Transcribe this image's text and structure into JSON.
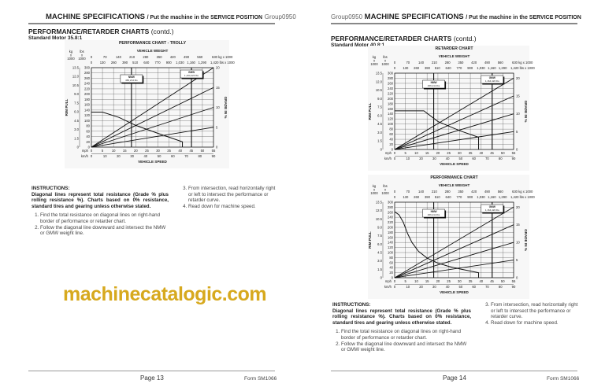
{
  "left_page": {
    "header": {
      "title": "MACHINE SPECIFICATIONS",
      "subtitle": "/ Put the machine in the SERVICE POSITION",
      "group": "Group0950"
    },
    "section_title": "PERFORMANCE/RETARDER CHARTS",
    "section_suffix": "(contd.)",
    "motor": "Standard Motor 35.8:1",
    "instructions": {
      "heading": "INSTRUCTIONS:",
      "body": "Diagonal lines represent total resistance (Grade % plus rolling resistance %). Charts based on 0% resistance, standard tires and gearing unless otherwise stated.",
      "steps": [
        "Find the total resistance on diagonal lines on right-hand border of performance or retarder chart.",
        "Follow the diagonal line downward and intersect the NMW or GMW weight line."
      ],
      "steps_cont": [
        "From intersection, read horizontally right or left to intersect the performance or retarder curve.",
        "Read down for machine speed."
      ]
    },
    "footer": {
      "page": "Page 13",
      "form": "Form SM1066"
    }
  },
  "right_page": {
    "header": {
      "title": "MACHINE SPECIFICATIONS",
      "subtitle": "/ Put the machine in the SERVICE POSITION",
      "group": "Group0950"
    },
    "section_title": "PERFORMANCE/RETARDER CHARTS",
    "section_suffix": "(contd.)",
    "motor": "Standard Motor 40.8:1",
    "instructions": {
      "heading": "INSTRUCTIONS:",
      "body": "Diagonal lines represent total resistance (Grade % plus rolling resistance %). Charts based on 0% resistance, standard tires and gearing unless otherwise stated.",
      "steps": [
        "Find the total resistance on diagonal lines on right-hand border of performance or retarder chart.",
        "Follow the diagonal line downward and intersect the NMW or GMW weight line."
      ],
      "steps_cont": [
        "From intersection, read horizontally right or left to intersect the performance or retarder curve.",
        "Read down for machine speed."
      ]
    },
    "footer": {
      "page": "Page 14",
      "form": "Form SM1066"
    }
  },
  "watermark": "machinecatalogic.com",
  "chart_data": [
    {
      "type": "line",
      "title": "PERFORMANCE CHART - TROLLY",
      "top_axis_label": "VEHICLE WEIGHT",
      "bottom_axis_label": "VEHICLE SPEED",
      "left_axis_label": "RIM PULL",
      "right_axis_label": "GRADE IN %",
      "kg_header": [
        "kg",
        "x",
        "1000"
      ],
      "lbs_header": [
        "lbs",
        "x",
        "1000"
      ],
      "kg_weight_ticks": [
        "0",
        "70",
        "140",
        "210",
        "280",
        "350",
        "420",
        "490",
        "560",
        "630 kg x 1000"
      ],
      "lbs_weight_ticks": [
        "130",
        "260",
        "390",
        "510",
        "640",
        "770",
        "900",
        "1,030",
        "1,160",
        "1,290",
        "1,420 lbs x 1000"
      ],
      "mph_label": "mph",
      "kmh_label": "km/h",
      "mph_ticks": [
        "0",
        "5",
        "10",
        "15",
        "20",
        "25",
        "30",
        "35",
        "40",
        "45",
        "50",
        "55"
      ],
      "kmh_ticks": [
        "0",
        "10",
        "20",
        "30",
        "40",
        "50",
        "60",
        "70",
        "80",
        "90"
      ],
      "rimpull_kg_ticks": [
        "0",
        "1.5",
        "3.0",
        "4.5",
        "6.0",
        "7.5",
        "9.0",
        "10.5",
        "12.0",
        "13.5"
      ],
      "rimpull_lbs_ticks": [
        "0",
        "20",
        "40",
        "60",
        "80",
        "100",
        "120",
        "140",
        "160",
        "180",
        "200",
        "220",
        "240",
        "260",
        "280",
        "300"
      ],
      "grade_ticks": [
        "0",
        "5",
        "10",
        "15",
        "20"
      ],
      "xlim_mph": [
        0,
        55
      ],
      "ylim_lbs_x1000": [
        0,
        300
      ],
      "grade_lim": [
        0,
        20
      ],
      "grade_lines": [
        5,
        10,
        15,
        20
      ],
      "curve": {
        "mph": [
          0,
          5,
          12.5,
          20,
          30,
          41,
          41
        ],
        "rimpull_lbs_x1000": [
          132,
          132,
          112,
          82,
          52,
          20,
          0
        ]
      },
      "weight_markers": [
        {
          "label": "NMW",
          "value": "466,214 lbs",
          "lbs_x1000": 466
        },
        {
          "label": "GMW",
          "value": "1,164,420 lbs",
          "lbs_x1000": 1164
        }
      ],
      "grid": true
    },
    {
      "type": "line",
      "title": "RETARDER CHART",
      "top_axis_label": "VEHICLE WEIGHT",
      "bottom_axis_label": "VEHICLE SPEED",
      "left_axis_label": "RIM PULL",
      "right_axis_label": "GRADE IN %",
      "kg_header": [
        "kg",
        "x",
        "1000"
      ],
      "lbs_header": [
        "lbs",
        "x",
        "1000"
      ],
      "kg_weight_ticks": [
        "0",
        "70",
        "140",
        "210",
        "280",
        "350",
        "420",
        "490",
        "560",
        "630 kg x 1000"
      ],
      "lbs_weight_ticks": [
        "130",
        "260",
        "390",
        "510",
        "640",
        "770",
        "900",
        "1,030",
        "1,160",
        "1,290",
        "1,420 lbs x 1000"
      ],
      "mph_label": "mph",
      "kmh_label": "km/h",
      "mph_ticks": [
        "0",
        "5",
        "10",
        "15",
        "20",
        "25",
        "30",
        "35",
        "40",
        "45",
        "50",
        "55"
      ],
      "kmh_ticks": [
        "0",
        "10",
        "20",
        "30",
        "40",
        "50",
        "60",
        "70",
        "80",
        "90"
      ],
      "rimpull_kg_ticks": [
        "0",
        "1.5",
        "3.0",
        "4.5",
        "6.0",
        "7.5",
        "9.0",
        "10.5",
        "12.0",
        "13.5"
      ],
      "rimpull_lbs_ticks": [
        "0",
        "20",
        "40",
        "60",
        "80",
        "100",
        "120",
        "140",
        "160",
        "180",
        "200",
        "220",
        "240",
        "260",
        "280",
        "300"
      ],
      "grade_ticks": [
        "0",
        "5",
        "10",
        "15",
        "20"
      ],
      "xlim_mph": [
        0,
        55
      ],
      "ylim_lbs_x1000": [
        0,
        300
      ],
      "grade_lim": [
        0,
        21.4
      ],
      "grade_lines": [
        5,
        10,
        15,
        20
      ],
      "curve": {
        "mph": [
          0,
          13.5,
          20,
          30,
          38.8,
          38.8
        ],
        "rimpull_lbs_x1000": [
          152,
          152,
          110,
          74,
          48,
          0
        ]
      },
      "weight_markers": [
        {
          "label": "NMW",
          "value": "466,214 lbs",
          "lbs_x1000": 466
        },
        {
          "label": "GMW",
          "value": "1,164,420 lbs",
          "lbs_x1000": 1164
        }
      ],
      "grid": true
    },
    {
      "type": "line",
      "title": "PERFORMANCE CHART",
      "top_axis_label": "VEHICLE WEIGHT",
      "bottom_axis_label": "VEHICLE SPEED",
      "left_axis_label": "RIM PULL",
      "right_axis_label": "GRADE IN %",
      "kg_header": [
        "kg",
        "x",
        "1000"
      ],
      "lbs_header": [
        "lbs",
        "x",
        "1000"
      ],
      "kg_weight_ticks": [
        "0",
        "70",
        "140",
        "210",
        "280",
        "350",
        "420",
        "490",
        "560",
        "630 kg x 1000"
      ],
      "lbs_weight_ticks": [
        "130",
        "260",
        "390",
        "510",
        "640",
        "770",
        "900",
        "1,030",
        "1,160",
        "1,290",
        "1,420 lbs x 1000"
      ],
      "mph_label": "mph",
      "kmh_label": "km/h",
      "mph_ticks": [
        "0",
        "5",
        "10",
        "15",
        "20",
        "25",
        "30",
        "35",
        "40",
        "45",
        "50",
        "55"
      ],
      "kmh_ticks": [
        "0",
        "10",
        "20",
        "30",
        "40",
        "50",
        "60",
        "70",
        "80",
        "90"
      ],
      "rimpull_kg_ticks": [
        "0",
        "1.5",
        "3.0",
        "4.5",
        "6.0",
        "7.5",
        "9.0",
        "10.5",
        "12.0",
        "13.5"
      ],
      "rimpull_lbs_ticks": [
        "0",
        "20",
        "40",
        "60",
        "80",
        "100",
        "120",
        "140",
        "160",
        "180",
        "200",
        "220",
        "240",
        "260",
        "280",
        "300"
      ],
      "grade_ticks": [
        "0",
        "5",
        "10",
        "15",
        "20"
      ],
      "xlim_mph": [
        0,
        55
      ],
      "ylim_lbs_x1000": [
        0,
        300
      ],
      "grade_lim": [
        0,
        21.4
      ],
      "grade_lines": [
        5,
        10,
        15,
        20
      ],
      "curve": {
        "mph": [
          0,
          2,
          4,
          6,
          8,
          11,
          15,
          20,
          25,
          30,
          38.8,
          38.8
        ],
        "rimpull_lbs_x1000": [
          262,
          250,
          220,
          175,
          140,
          105,
          78,
          58,
          45,
          35,
          20,
          0
        ]
      },
      "weight_markers": [
        {
          "label": "NMW",
          "value": "466,214 lbs",
          "lbs_x1000": 466
        },
        {
          "label": "GMW",
          "value": "1,164,420 lbs",
          "lbs_x1000": 1164
        }
      ],
      "grid": true
    }
  ]
}
